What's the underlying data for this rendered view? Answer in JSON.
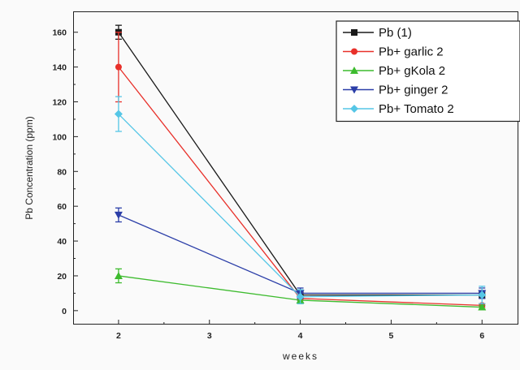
{
  "chart_data": {
    "type": "line",
    "xlabel": "weeks",
    "ylabel": "Pb Concentration (ppm)",
    "x_ticks": [
      2,
      3,
      4,
      5,
      6
    ],
    "y_ticks": [
      0,
      20,
      40,
      60,
      80,
      100,
      120,
      140,
      160
    ],
    "xlim": [
      1.5,
      6.4
    ],
    "ylim": [
      -8,
      172
    ],
    "grid": false,
    "legend_position": "top-right",
    "series": [
      {
        "name": "Pb (1)",
        "color": "#1a1a1a",
        "marker": "square",
        "x": [
          2,
          4,
          6
        ],
        "y": [
          160,
          9,
          9
        ],
        "err": [
          4,
          3,
          2
        ]
      },
      {
        "name": "Pb+ garlic 2",
        "color": "#e8302a",
        "marker": "circle",
        "x": [
          2,
          4,
          6
        ],
        "y": [
          140,
          7,
          3
        ],
        "err": [
          20,
          3,
          1
        ]
      },
      {
        "name": "Pb+ gKola 2",
        "color": "#3dbb2e",
        "marker": "triangle-up",
        "x": [
          2,
          4,
          6
        ],
        "y": [
          20,
          6,
          2
        ],
        "err": [
          4,
          2,
          1
        ]
      },
      {
        "name": "Pb+ ginger 2",
        "color": "#2b3ea8",
        "marker": "triangle-down",
        "x": [
          2,
          4,
          6
        ],
        "y": [
          55,
          10,
          10
        ],
        "err": [
          4,
          3,
          3
        ]
      },
      {
        "name": "Pb+ Tomato 2",
        "color": "#55c6e6",
        "marker": "diamond",
        "x": [
          2,
          4,
          6
        ],
        "y": [
          113,
          8,
          9
        ],
        "err": [
          10,
          4,
          5
        ]
      }
    ]
  }
}
